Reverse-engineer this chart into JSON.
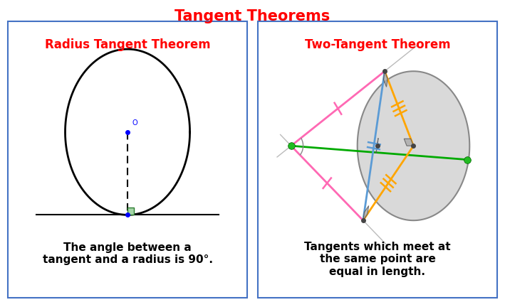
{
  "title": "Tangent Theorems",
  "title_color": "#ff0000",
  "title_fontsize": 15,
  "left_panel_title": "Radius Tangent Theorem",
  "right_panel_title": "Two-Tangent Theorem",
  "panel_title_color": "#ff0000",
  "panel_title_fontsize": 12,
  "left_desc": "The angle between a\ntangent and a radius is 90°.",
  "right_desc": "Tangents which meet at\nthe same point are\nequal in length.",
  "desc_fontsize": 11,
  "bg_color": "#ffffff",
  "panel_border_color": "#4472c4",
  "pink_color": "#ff69b4",
  "green_color": "#00aa00",
  "blue_color": "#5b9bd5",
  "orange_color": "#ffa500",
  "gray_color": "#aaaaaa",
  "dot_dark": "#333333",
  "dot_green": "#22bb22"
}
